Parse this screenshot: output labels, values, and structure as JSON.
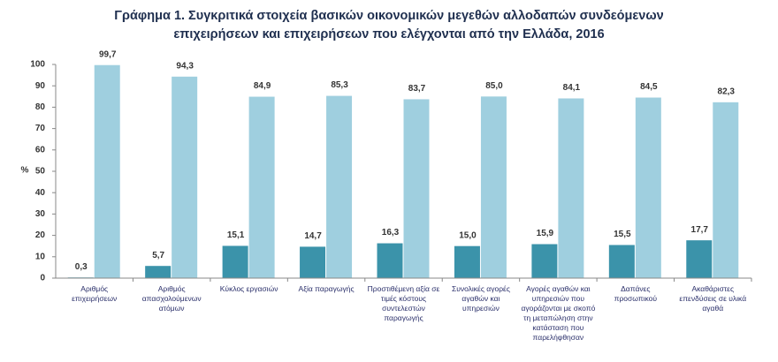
{
  "chart_data": {
    "type": "bar",
    "title": "Γράφημα 1. Συγκριτικά στοιχεία βασικών οικονομικών μεγεθών αλλοδαπών συνδεόμενων επιχειρήσεων και επιχειρήσεων που ελέγχονται από την Ελλάδα, 2016",
    "y_label": "%",
    "categories": [
      "Αριθμός επιχειρήσεων",
      "Αριθμός απασχολούμενων ατόμων",
      "Κύκλος εργασιών",
      "Αξία παραγωγής",
      "Προστιθέμενη αξία σε τιμές κόστους συντελεστών παραγωγής",
      "Συνολικές αγορές αγαθών και υπηρεσιών",
      "Αγορές αγαθών και υπηρεσιών που αγοράζονται με σκοπό τη μεταπώληση στην κατάσταση που παρελήφθησαν",
      "Δαπάνες προσωπικού",
      "Ακαθάριστες επενδύσεις σε υλικά αγαθά"
    ],
    "series": [
      {
        "color": "#3b93aa",
        "values": [
          0.3,
          5.7,
          15.1,
          14.7,
          16.3,
          15.0,
          15.9,
          15.5,
          17.7
        ],
        "value_labels": [
          "0,3",
          "5,7",
          "15,1",
          "14,7",
          "16,3",
          "15,0",
          "15,9",
          "15,5",
          "17,7"
        ]
      },
      {
        "color": "#9fcfdf",
        "values": [
          99.7,
          94.3,
          84.9,
          85.3,
          83.7,
          85.0,
          84.1,
          84.5,
          82.3
        ],
        "value_labels": [
          "99,7",
          "94,3",
          "84,9",
          "85,3",
          "83,7",
          "85,0",
          "84,1",
          "84,5",
          "82,3"
        ]
      }
    ],
    "ylim": [
      0,
      100
    ],
    "yticks": [
      0,
      10,
      20,
      30,
      40,
      50,
      60,
      70,
      80,
      90,
      100
    ],
    "grid": false
  }
}
